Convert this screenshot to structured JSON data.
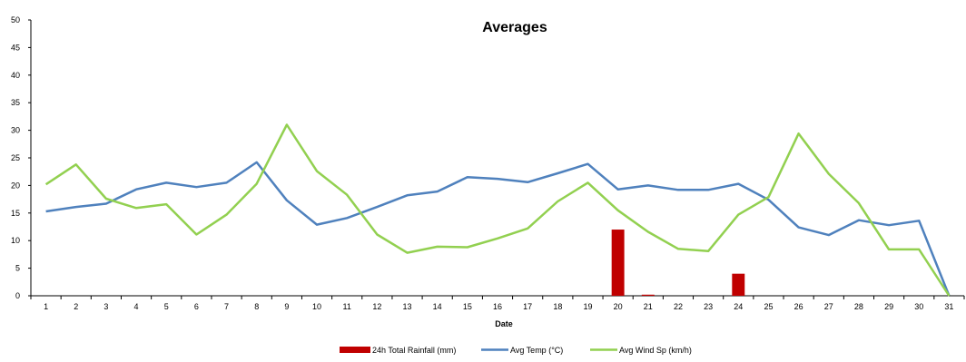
{
  "chart_data": {
    "type": "bar+line",
    "title": "Averages",
    "xlabel": "Date",
    "ylabel": "",
    "ylim": [
      0,
      50
    ],
    "yticks": [
      0,
      5,
      10,
      15,
      20,
      25,
      30,
      35,
      40,
      45,
      50
    ],
    "categories": [
      "1",
      "2",
      "3",
      "4",
      "5",
      "6",
      "7",
      "8",
      "9",
      "10",
      "11",
      "12",
      "13",
      "14",
      "15",
      "16",
      "17",
      "18",
      "19",
      "20",
      "21",
      "22",
      "23",
      "24",
      "25",
      "26",
      "27",
      "28",
      "29",
      "30",
      "31"
    ],
    "grid": false,
    "legend_position": "bottom",
    "series": [
      {
        "name": "24h Total Rainfall (mm)",
        "kind": "bar",
        "color": "#C00000",
        "values": [
          0,
          0,
          0,
          0,
          0,
          0,
          0,
          0,
          0,
          0,
          0,
          0,
          0,
          0,
          0,
          0,
          0,
          0,
          0,
          12,
          0.2,
          0,
          0,
          4,
          0,
          0,
          0,
          0,
          0,
          0,
          0
        ]
      },
      {
        "name": "Avg Temp (°C)",
        "kind": "line",
        "color": "#4F81BD",
        "values": [
          15.3,
          16.1,
          16.7,
          19.3,
          20.5,
          19.7,
          20.5,
          24.2,
          17.3,
          12.9,
          14.1,
          16.1,
          18.2,
          18.9,
          21.5,
          21.2,
          20.6,
          22.2,
          23.9,
          19.3,
          20.0,
          19.2,
          19.2,
          20.3,
          17.4,
          12.4,
          11.0,
          13.7,
          12.8,
          13.6,
          0
        ]
      },
      {
        "name": "Avg Wind Sp (km/h)",
        "kind": "line",
        "color": "#92D050",
        "values": [
          20.2,
          23.8,
          17.6,
          15.9,
          16.6,
          11.1,
          14.7,
          20.3,
          31.0,
          22.6,
          18.3,
          11.1,
          7.8,
          8.9,
          8.8,
          10.4,
          12.2,
          17.1,
          20.5,
          15.5,
          11.6,
          8.5,
          8.1,
          14.7,
          17.9,
          29.4,
          22.1,
          16.8,
          8.4,
          8.4,
          0
        ]
      }
    ]
  }
}
